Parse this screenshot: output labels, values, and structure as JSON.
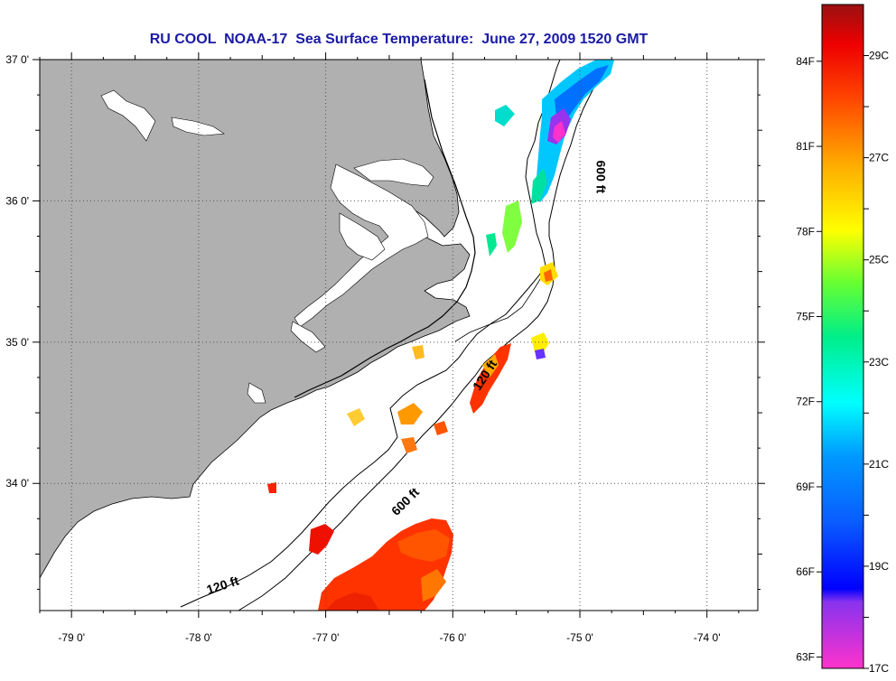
{
  "title": "RU COOL  NOAA-17  Sea Surface Temperature:  June 27, 2009 1520 GMT",
  "axes": {
    "lon_labels": [
      {
        "lon": -79,
        "label": "-79 0'"
      },
      {
        "lon": -78,
        "label": "-78 0'"
      },
      {
        "lon": -77,
        "label": "-77 0'"
      },
      {
        "lon": -76,
        "label": "-76 0'"
      },
      {
        "lon": -75,
        "label": "-75 0'"
      },
      {
        "lon": -74,
        "label": "-74 0'"
      }
    ],
    "lat_labels": [
      {
        "lat": 37,
        "label": "37 0'"
      },
      {
        "lat": 36,
        "label": "36 0'"
      },
      {
        "lat": 35,
        "label": "35 0'"
      },
      {
        "lat": 34,
        "label": "34 0'"
      }
    ],
    "lon_range": [
      -79.25,
      -73.6
    ],
    "lat_range": [
      33.1,
      37.0
    ]
  },
  "contour_labels": [
    {
      "text": "600 ft",
      "lon": -74.87,
      "lat": 36.17,
      "rotate": 90
    },
    {
      "text": "120 ft",
      "lon": -75.72,
      "lat": 34.75,
      "rotate": -57
    },
    {
      "text": "600 ft",
      "lon": -76.35,
      "lat": 33.85,
      "rotate": -45
    },
    {
      "text": "120 ft",
      "lon": -77.8,
      "lat": 33.25,
      "rotate": -18
    }
  ],
  "colorbar": {
    "celsius": [
      {
        "value": 29,
        "label": "29C"
      },
      {
        "value": 27,
        "label": "27C"
      },
      {
        "value": 25,
        "label": "25C"
      },
      {
        "value": 23,
        "label": "23C"
      },
      {
        "value": 21,
        "label": "21C"
      },
      {
        "value": 19,
        "label": "19C"
      },
      {
        "value": 17,
        "label": "17C"
      }
    ],
    "fahrenheit": [
      {
        "value": 84,
        "label": "84F"
      },
      {
        "value": 81,
        "label": "81F"
      },
      {
        "value": 78,
        "label": "78F"
      },
      {
        "value": 75,
        "label": "75F"
      },
      {
        "value": 72,
        "label": "72F"
      },
      {
        "value": 69,
        "label": "69F"
      },
      {
        "value": 66,
        "label": "66F"
      },
      {
        "value": 63,
        "label": "63F"
      }
    ]
  },
  "colors": {
    "land": "#b0b0b0",
    "sea": "#ffffff",
    "title": "#1a1aa6",
    "grid": "#555555"
  }
}
